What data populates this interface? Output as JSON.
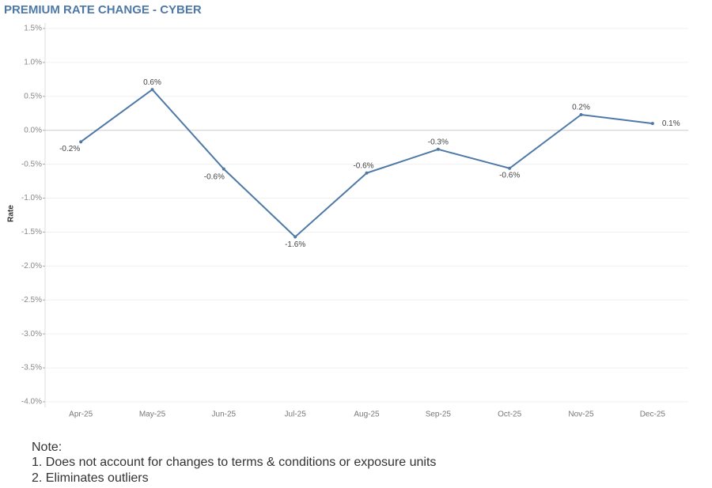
{
  "chart_data": {
    "type": "line",
    "title": "PREMIUM RATE CHANGE - CYBER",
    "y_label": "Rate",
    "categories": [
      "Apr-25",
      "May-25",
      "Jun-25",
      "Jul-25",
      "Aug-25",
      "Sep-25",
      "Oct-25",
      "Nov-25",
      "Dec-25"
    ],
    "series": [
      {
        "name": "Rate",
        "color": "#4e79a7",
        "values": [
          -0.17,
          0.6,
          -0.57,
          -1.57,
          -0.63,
          -0.28,
          -0.56,
          0.23,
          0.1
        ],
        "value_labels": [
          "-0.2%",
          "0.6%",
          "-0.6%",
          "-1.6%",
          "-0.6%",
          "-0.3%",
          "-0.6%",
          "0.2%",
          "0.1%"
        ]
      }
    ],
    "ylim": [
      -4.0,
      1.5
    ],
    "yticks": [
      {
        "value": 1.5,
        "label": "1.5%"
      },
      {
        "value": 1.0,
        "label": "1.0%"
      },
      {
        "value": 0.5,
        "label": "0.5%"
      },
      {
        "value": 0.0,
        "label": "0.0%"
      },
      {
        "value": -0.5,
        "label": "-0.5%"
      },
      {
        "value": -1.0,
        "label": "-1.0%"
      },
      {
        "value": -1.5,
        "label": "-1.5%"
      },
      {
        "value": -2.0,
        "label": "-2.0%"
      },
      {
        "value": -2.5,
        "label": "-2.5%"
      },
      {
        "value": -3.0,
        "label": "-3.0%"
      },
      {
        "value": -3.5,
        "label": "-3.5%"
      },
      {
        "value": -4.0,
        "label": "-4.0%"
      }
    ],
    "grid": true
  },
  "notes": {
    "heading": "Note:",
    "items": [
      "1. Does not account for changes to terms & conditions or exposure units",
      "2. Eliminates outliers"
    ]
  }
}
